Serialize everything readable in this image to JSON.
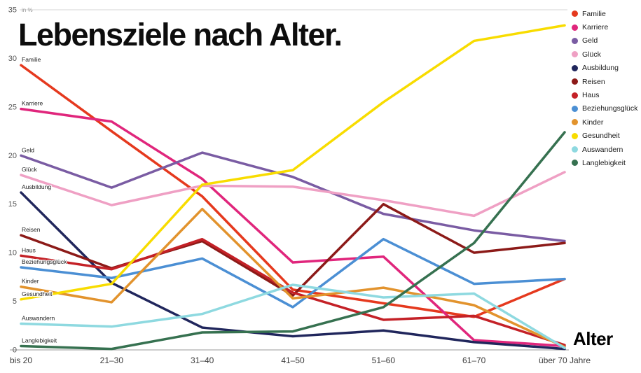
{
  "chart_data": {
    "type": "line",
    "title": "Lebensziele nach Alter.",
    "xlabel": "Alter",
    "ylabel": "in %",
    "ylim": [
      0,
      35
    ],
    "yticks": [
      0,
      5,
      10,
      15,
      20,
      25,
      30,
      35
    ],
    "grid": "top-rule-and-baseline-only",
    "legend_position": "top-right",
    "categories": [
      "bis 20",
      "21–30",
      "31–40",
      "41–50",
      "51–60",
      "61–70",
      "über 70 Jahre"
    ],
    "series": [
      {
        "name": "Familie",
        "color": "#e5391e",
        "values": [
          29.3,
          22.5,
          15.8,
          6.2,
          4.8,
          3.4,
          7.3
        ]
      },
      {
        "name": "Karriere",
        "color": "#e0267c",
        "values": [
          24.8,
          23.5,
          17.6,
          9.0,
          9.6,
          1.0,
          0.4
        ]
      },
      {
        "name": "Geld",
        "color": "#7a5ca3",
        "values": [
          20.0,
          16.7,
          20.3,
          17.8,
          14.0,
          12.3,
          11.2
        ]
      },
      {
        "name": "Glück",
        "color": "#efa0c4",
        "values": [
          18.0,
          14.9,
          16.9,
          16.8,
          15.4,
          13.8,
          18.3
        ]
      },
      {
        "name": "Ausbildung",
        "color": "#20265c",
        "values": [
          16.2,
          6.9,
          2.3,
          1.4,
          2.0,
          0.8,
          0.1
        ]
      },
      {
        "name": "Reisen",
        "color": "#8c1a18",
        "values": [
          11.8,
          8.4,
          11.2,
          5.6,
          15.0,
          10.0,
          11.0
        ]
      },
      {
        "name": "Haus",
        "color": "#c42127",
        "values": [
          9.7,
          8.3,
          11.4,
          5.9,
          3.1,
          3.5,
          0.5
        ]
      },
      {
        "name": "Beziehungsglück",
        "color": "#4b8fd4",
        "values": [
          8.5,
          7.4,
          9.4,
          4.4,
          11.4,
          6.8,
          7.3
        ]
      },
      {
        "name": "Kinder",
        "color": "#e2932d",
        "values": [
          6.5,
          4.9,
          14.5,
          5.3,
          6.4,
          4.6,
          0.3
        ]
      },
      {
        "name": "Gesundheit",
        "color": "#f8dc00",
        "values": [
          5.2,
          6.8,
          17.0,
          18.5,
          25.5,
          31.8,
          33.4
        ]
      },
      {
        "name": "Auswandern",
        "color": "#8ed9e0",
        "values": [
          2.7,
          2.4,
          3.7,
          6.7,
          5.4,
          5.8,
          0.2
        ]
      },
      {
        "name": "Langlebigkeit",
        "color": "#367150",
        "values": [
          0.4,
          0.1,
          1.8,
          1.9,
          4.4,
          11.0,
          22.4
        ]
      }
    ]
  }
}
